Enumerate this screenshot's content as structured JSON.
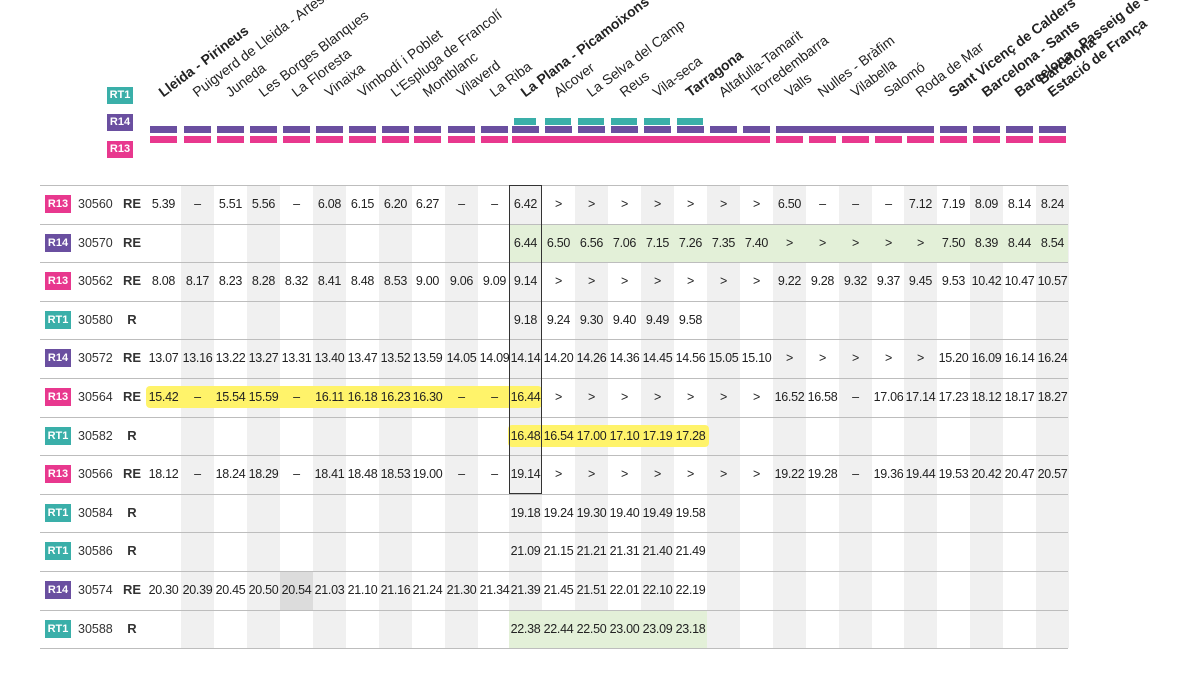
{
  "stations": [
    {
      "name": "Lleida - Pirineus",
      "bold": true
    },
    {
      "name": "Puigverd de Lleida - Artesa de Lleida",
      "bold": false
    },
    {
      "name": "Juneda",
      "bold": false
    },
    {
      "name": "Les Borges Blanques",
      "bold": false
    },
    {
      "name": "La Floresta",
      "bold": false
    },
    {
      "name": "Vinaixa",
      "bold": false
    },
    {
      "name": "Vimbodí i Poblet",
      "bold": false
    },
    {
      "name": "L'Espluga de Francolí",
      "bold": false
    },
    {
      "name": "Montblanc",
      "bold": false
    },
    {
      "name": "Vilaverd",
      "bold": false
    },
    {
      "name": "La Riba",
      "bold": false
    },
    {
      "name": "La Plana - Picamoixons",
      "bold": true
    },
    {
      "name": "Alcover",
      "bold": false
    },
    {
      "name": "La Selva del Camp",
      "bold": false
    },
    {
      "name": "Reus",
      "bold": false
    },
    {
      "name": "Vila-seca",
      "bold": false
    },
    {
      "name": "Tarragona",
      "bold": true
    },
    {
      "name": "Altafulla-Tamarit",
      "bold": false
    },
    {
      "name": "Torredembarra",
      "bold": false
    },
    {
      "name": "Valls",
      "bold": false
    },
    {
      "name": "Nulles - Bràfim",
      "bold": false
    },
    {
      "name": "Vilabella",
      "bold": false
    },
    {
      "name": "Salomó",
      "bold": false
    },
    {
      "name": "Roda de Mar",
      "bold": false
    },
    {
      "name": "Sant Vicenç de Calders",
      "bold": true
    },
    {
      "name": "Barcelona - Sants",
      "bold": true
    },
    {
      "name": "Barcelona - Passeig de Gràcia",
      "bold": true
    },
    {
      "name": "Barcelona - Estació de França",
      "bold": true
    }
  ],
  "routes": [
    {
      "label": "RT1",
      "color": "#3aafa9"
    },
    {
      "label": "R14",
      "color": "#6a4fa0"
    },
    {
      "label": "R13",
      "color": "#e8388e"
    }
  ],
  "trains": [
    {
      "line": "R13",
      "number": "30560",
      "type": "RE",
      "times": [
        "5.39",
        "–",
        "5.51",
        "5.56",
        "–",
        "6.08",
        "6.15",
        "6.20",
        "6.27",
        "–",
        "–",
        "6.42",
        ">",
        ">",
        ">",
        ">",
        ">",
        ">",
        ">",
        "6.50",
        "–",
        "–",
        "–",
        "7.12",
        "7.19",
        "8.09",
        "8.14",
        "8.24"
      ]
    },
    {
      "line": "R14",
      "number": "30570",
      "type": "RE",
      "times": [
        "",
        "",
        "",
        "",
        "",
        "",
        "",
        "",
        "",
        "",
        "",
        "6.44",
        "6.50",
        "6.56",
        "7.06",
        "7.15",
        "7.26",
        "7.35",
        "7.40",
        ">",
        ">",
        ">",
        ">",
        ">",
        "7.50",
        "8.39",
        "8.44",
        "8.54"
      ]
    },
    {
      "line": "R13",
      "number": "30562",
      "type": "RE",
      "times": [
        "8.08",
        "8.17",
        "8.23",
        "8.28",
        "8.32",
        "8.41",
        "8.48",
        "8.53",
        "9.00",
        "9.06",
        "9.09",
        "9.14",
        ">",
        ">",
        ">",
        ">",
        ">",
        ">",
        ">",
        "9.22",
        "9.28",
        "9.32",
        "9.37",
        "9.45",
        "9.53",
        "10.42",
        "10.47",
        "10.57"
      ]
    },
    {
      "line": "RT1",
      "number": "30580",
      "type": "R",
      "times": [
        "",
        "",
        "",
        "",
        "",
        "",
        "",
        "",
        "",
        "",
        "",
        "9.18",
        "9.24",
        "9.30",
        "9.40",
        "9.49",
        "9.58",
        "",
        "",
        "",
        "",
        "",
        "",
        "",
        "",
        "",
        "",
        ""
      ]
    },
    {
      "line": "R14",
      "number": "30572",
      "type": "RE",
      "times": [
        "13.07",
        "13.16",
        "13.22",
        "13.27",
        "13.31",
        "13.40",
        "13.47",
        "13.52",
        "13.59",
        "14.05",
        "14.09",
        "14.14",
        "14.20",
        "14.26",
        "14.36",
        "14.45",
        "14.56",
        "15.05",
        "15.10",
        ">",
        ">",
        ">",
        ">",
        ">",
        "15.20",
        "16.09",
        "16.14",
        "16.24"
      ]
    },
    {
      "line": "R13",
      "number": "30564",
      "type": "RE",
      "times": [
        "15.42",
        "–",
        "15.54",
        "15.59",
        "–",
        "16.11",
        "16.18",
        "16.23",
        "16.30",
        "–",
        "–",
        "16.44",
        ">",
        ">",
        ">",
        ">",
        ">",
        ">",
        ">",
        "16.52",
        "16.58",
        "–",
        "17.06",
        "17.14",
        "17.23",
        "18.12",
        "18.17",
        "18.27"
      ]
    },
    {
      "line": "RT1",
      "number": "30582",
      "type": "R",
      "times": [
        "",
        "",
        "",
        "",
        "",
        "",
        "",
        "",
        "",
        "",
        "",
        "16.48",
        "16.54",
        "17.00",
        "17.10",
        "17.19",
        "17.28",
        "",
        "",
        "",
        "",
        "",
        "",
        "",
        "",
        "",
        "",
        ""
      ]
    },
    {
      "line": "R13",
      "number": "30566",
      "type": "RE",
      "times": [
        "18.12",
        "–",
        "18.24",
        "18.29",
        "–",
        "18.41",
        "18.48",
        "18.53",
        "19.00",
        "–",
        "–",
        "19.14",
        ">",
        ">",
        ">",
        ">",
        ">",
        ">",
        ">",
        "19.22",
        "19.28",
        "–",
        "19.36",
        "19.44",
        "19.53",
        "20.42",
        "20.47",
        "20.57"
      ]
    },
    {
      "line": "RT1",
      "number": "30584",
      "type": "R",
      "times": [
        "",
        "",
        "",
        "",
        "",
        "",
        "",
        "",
        "",
        "",
        "",
        "19.18",
        "19.24",
        "19.30",
        "19.40",
        "19.49",
        "19.58",
        "",
        "",
        "",
        "",
        "",
        "",
        "",
        "",
        "",
        "",
        ""
      ]
    },
    {
      "line": "RT1",
      "number": "30586",
      "type": "R",
      "times": [
        "",
        "",
        "",
        "",
        "",
        "",
        "",
        "",
        "",
        "",
        "",
        "21.09",
        "21.15",
        "21.21",
        "21.31",
        "21.40",
        "21.49",
        "",
        "",
        "",
        "",
        "",
        "",
        "",
        "",
        "",
        "",
        ""
      ]
    },
    {
      "line": "R14",
      "number": "30574",
      "type": "RE",
      "times": [
        "20.30",
        "20.39",
        "20.45",
        "20.50",
        "20.54",
        "21.03",
        "21.10",
        "21.16",
        "21.24",
        "21.30",
        "21.34",
        "21.39",
        "21.45",
        "21.51",
        "22.01",
        "22.10",
        "22.19",
        "",
        "",
        "",
        "",
        "",
        "",
        "",
        "",
        "",
        "",
        ""
      ]
    },
    {
      "line": "RT1",
      "number": "30588",
      "type": "R",
      "times": [
        "",
        "",
        "",
        "",
        "",
        "",
        "",
        "",
        "",
        "",
        "",
        "22.38",
        "22.44",
        "22.50",
        "23.00",
        "23.09",
        "23.18",
        "",
        "",
        "",
        "",
        "",
        "",
        "",
        "",
        "",
        "",
        ""
      ]
    }
  ]
}
